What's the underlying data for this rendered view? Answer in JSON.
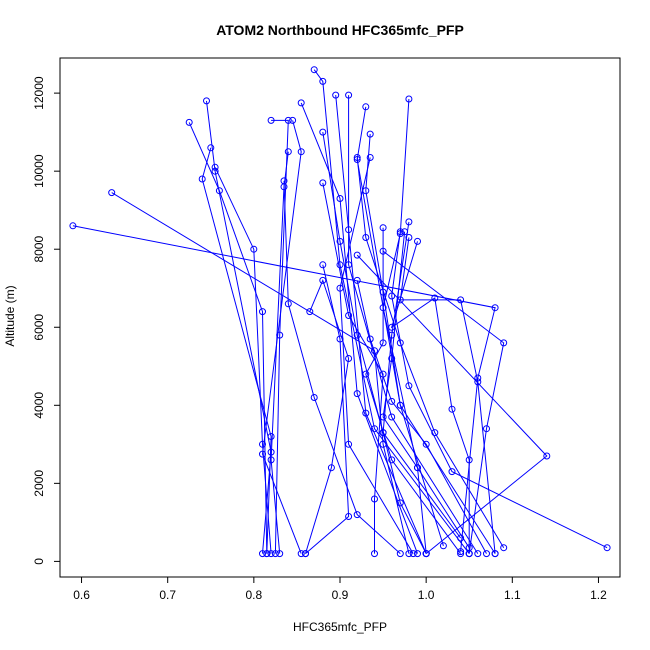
{
  "chart_data": {
    "type": "line",
    "title": "ATOM2 Northbound HFC365mfc_PFP",
    "xlabel": "HFC365mfc_PFP",
    "ylabel": "Altitude (m)",
    "xlim": [
      0.575,
      1.225
    ],
    "ylim": [
      -400,
      12900
    ],
    "xticks": [
      "0.6",
      "0.7",
      "0.8",
      "0.9",
      "1.0",
      "1.1",
      "1.2"
    ],
    "yticks": [
      "0",
      "2000",
      "4000",
      "6000",
      "8000",
      "10000",
      "12000"
    ],
    "grid": false,
    "legend": "none",
    "series_color": "#0000ff",
    "profiles": [
      [
        [
          0.725,
          11250
        ],
        [
          0.76,
          9500
        ],
        [
          0.81,
          6400
        ],
        [
          0.815,
          200
        ]
      ],
      [
        [
          0.745,
          11800
        ],
        [
          0.755,
          10000
        ],
        [
          0.82,
          2800
        ],
        [
          0.81,
          200
        ]
      ],
      [
        [
          0.75,
          10600
        ],
        [
          0.74,
          9800
        ],
        [
          0.82,
          3200
        ],
        [
          0.815,
          200
        ]
      ],
      [
        [
          0.755,
          10100
        ],
        [
          0.8,
          8000
        ],
        [
          0.81,
          3000
        ],
        [
          0.82,
          200
        ]
      ],
      [
        [
          0.59,
          8600
        ],
        [
          1.08,
          6500
        ],
        [
          1.06,
          4700
        ],
        [
          1.04,
          250
        ]
      ],
      [
        [
          0.635,
          9450
        ],
        [
          0.94,
          5400
        ],
        [
          0.95,
          3000
        ],
        [
          0.98,
          200
        ]
      ],
      [
        [
          0.82,
          11300
        ],
        [
          0.84,
          11300
        ],
        [
          0.83,
          5800
        ],
        [
          0.825,
          200
        ]
      ],
      [
        [
          0.84,
          10500
        ],
        [
          0.835,
          9600
        ],
        [
          0.82,
          2600
        ],
        [
          0.83,
          200
        ]
      ],
      [
        [
          0.855,
          11750
        ],
        [
          0.9,
          9300
        ],
        [
          0.92,
          4300
        ],
        [
          0.99,
          200
        ]
      ],
      [
        [
          0.845,
          11300
        ],
        [
          0.855,
          10500
        ],
        [
          0.81,
          2750
        ],
        [
          0.855,
          200
        ]
      ],
      [
        [
          0.87,
          12600
        ],
        [
          0.88,
          12300
        ],
        [
          0.9,
          7600
        ],
        [
          0.94,
          3400
        ],
        [
          1.05,
          200
        ]
      ],
      [
        [
          0.895,
          11950
        ],
        [
          0.91,
          8500
        ],
        [
          0.93,
          3800
        ],
        [
          1.0,
          200
        ]
      ],
      [
        [
          0.91,
          11950
        ],
        [
          0.91,
          7600
        ],
        [
          0.96,
          3700
        ],
        [
          1.06,
          200
        ]
      ],
      [
        [
          0.93,
          11650
        ],
        [
          0.92,
          10300
        ],
        [
          0.97,
          4000
        ],
        [
          1.08,
          200
        ]
      ],
      [
        [
          0.98,
          11850
        ],
        [
          0.97,
          8400
        ],
        [
          0.95,
          6500
        ],
        [
          0.99,
          2400
        ],
        [
          1.05,
          350
        ]
      ],
      [
        [
          0.88,
          11000
        ],
        [
          0.9,
          8200
        ],
        [
          0.92,
          5800
        ],
        [
          0.95,
          3300
        ],
        [
          1.04,
          600
        ]
      ],
      [
        [
          0.935,
          10950
        ],
        [
          0.93,
          9500
        ],
        [
          0.95,
          6900
        ],
        [
          0.97,
          4000
        ],
        [
          1.02,
          400
        ]
      ],
      [
        [
          0.935,
          10350
        ],
        [
          0.9,
          7000
        ],
        [
          0.91,
          3000
        ],
        [
          0.985,
          200
        ]
      ],
      [
        [
          0.92,
          10350
        ],
        [
          0.93,
          8300
        ],
        [
          0.97,
          5600
        ],
        [
          1.01,
          3300
        ],
        [
          1.09,
          350
        ]
      ],
      [
        [
          0.88,
          9700
        ],
        [
          0.91,
          6300
        ],
        [
          0.95,
          4800
        ],
        [
          0.94,
          1600
        ],
        [
          0.94,
          200
        ]
      ],
      [
        [
          0.835,
          9750
        ],
        [
          0.84,
          6600
        ],
        [
          0.87,
          4200
        ],
        [
          0.92,
          1200
        ],
        [
          0.97,
          200
        ]
      ],
      [
        [
          0.98,
          8700
        ],
        [
          0.96,
          5800
        ],
        [
          0.95,
          3300
        ],
        [
          0.97,
          1500
        ],
        [
          1.0,
          200
        ]
      ],
      [
        [
          0.95,
          8550
        ],
        [
          0.95,
          5600
        ],
        [
          0.93,
          4800
        ],
        [
          0.96,
          2600
        ],
        [
          1.04,
          200
        ]
      ],
      [
        [
          0.97,
          8450
        ],
        [
          0.96,
          6800
        ],
        [
          0.98,
          4500
        ],
        [
          1.03,
          2300
        ],
        [
          1.21,
          350
        ]
      ],
      [
        [
          0.98,
          8300
        ],
        [
          0.97,
          6700
        ],
        [
          1.04,
          6700
        ],
        [
          1.06,
          4600
        ],
        [
          1.08,
          200
        ]
      ],
      [
        [
          0.975,
          8450
        ],
        [
          0.96,
          5200
        ],
        [
          0.95,
          3700
        ],
        [
          0.99,
          2400
        ],
        [
          1.0,
          200
        ]
      ],
      [
        [
          0.95,
          7950
        ],
        [
          1.09,
          5600
        ],
        [
          1.07,
          3400
        ],
        [
          1.05,
          200
        ]
      ],
      [
        [
          0.92,
          7850
        ],
        [
          1.14,
          2700
        ],
        [
          1.0,
          200
        ]
      ],
      [
        [
          0.88,
          7600
        ],
        [
          0.9,
          5700
        ],
        [
          0.91,
          1150
        ],
        [
          0.86,
          200
        ]
      ],
      [
        [
          0.865,
          6400
        ],
        [
          0.88,
          7200
        ],
        [
          0.91,
          5200
        ],
        [
          0.89,
          2400
        ],
        [
          0.86,
          200
        ]
      ],
      [
        [
          0.99,
          8200
        ],
        [
          0.96,
          6000
        ],
        [
          1.01,
          6750
        ],
        [
          1.03,
          3900
        ],
        [
          1.05,
          2600
        ],
        [
          1.05,
          200
        ]
      ],
      [
        [
          0.92,
          7200
        ],
        [
          0.935,
          5700
        ],
        [
          0.96,
          4100
        ],
        [
          1.0,
          3000
        ],
        [
          1.07,
          200
        ]
      ]
    ]
  }
}
